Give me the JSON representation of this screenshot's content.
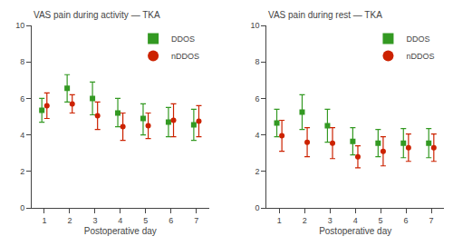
{
  "chart_data": [
    {
      "type": "scatter",
      "title": "VAS pain during activity — TKA",
      "xlabel": "Postoperative day",
      "x": [
        1,
        2,
        3,
        4,
        5,
        6,
        7
      ],
      "xlim": [
        0.5,
        7.5
      ],
      "xticks": [
        1,
        2,
        3,
        4,
        5,
        6,
        7
      ],
      "ylim": [
        0,
        10
      ],
      "yticks": [
        0,
        2,
        4,
        6,
        8,
        10
      ],
      "grid": false,
      "legend": "upper right",
      "series": [
        {
          "name": "DDOS",
          "color": "#339922",
          "marker": "square",
          "values": [
            5.35,
            6.55,
            6.0,
            5.2,
            4.9,
            4.7,
            4.55
          ],
          "error_low": [
            4.7,
            5.8,
            5.1,
            4.45,
            4.0,
            3.9,
            3.7
          ],
          "error_high": [
            6.0,
            7.3,
            6.9,
            6.0,
            5.7,
            5.5,
            5.4
          ]
        },
        {
          "name": "nDDOS",
          "color": "#cc2200",
          "marker": "circle",
          "values": [
            5.6,
            5.7,
            5.05,
            4.45,
            4.5,
            4.8,
            4.75
          ],
          "error_low": [
            4.9,
            5.2,
            4.3,
            3.7,
            3.8,
            3.9,
            3.9
          ],
          "error_high": [
            6.3,
            6.2,
            5.8,
            5.2,
            5.2,
            5.7,
            5.6
          ]
        }
      ]
    },
    {
      "type": "scatter",
      "title": "VAS pain during rest — TKA",
      "xlabel": "Postoperative day",
      "x": [
        1,
        2,
        3,
        4,
        5,
        6,
        7
      ],
      "xlim": [
        0.5,
        7.5
      ],
      "xticks": [
        1,
        2,
        3,
        4,
        5,
        6,
        7
      ],
      "ylim": [
        0,
        10
      ],
      "yticks": [
        0,
        2,
        4,
        6,
        8,
        10
      ],
      "grid": false,
      "legend": "upper right",
      "series": [
        {
          "name": "DDOS",
          "color": "#339922",
          "marker": "square",
          "values": [
            4.65,
            5.25,
            4.5,
            3.65,
            3.55,
            3.55,
            3.55
          ],
          "error_low": [
            3.9,
            4.3,
            3.6,
            2.9,
            2.8,
            2.75,
            2.75
          ],
          "error_high": [
            5.4,
            6.2,
            5.4,
            4.4,
            4.3,
            4.35,
            4.35
          ]
        },
        {
          "name": "nDDOS",
          "color": "#cc2200",
          "marker": "circle",
          "values": [
            3.95,
            3.6,
            3.55,
            2.8,
            3.1,
            3.3,
            3.3
          ],
          "error_low": [
            3.1,
            2.8,
            2.7,
            2.2,
            2.3,
            2.55,
            2.55
          ],
          "error_high": [
            4.8,
            4.4,
            4.4,
            3.4,
            3.9,
            4.05,
            4.05
          ]
        }
      ]
    }
  ]
}
